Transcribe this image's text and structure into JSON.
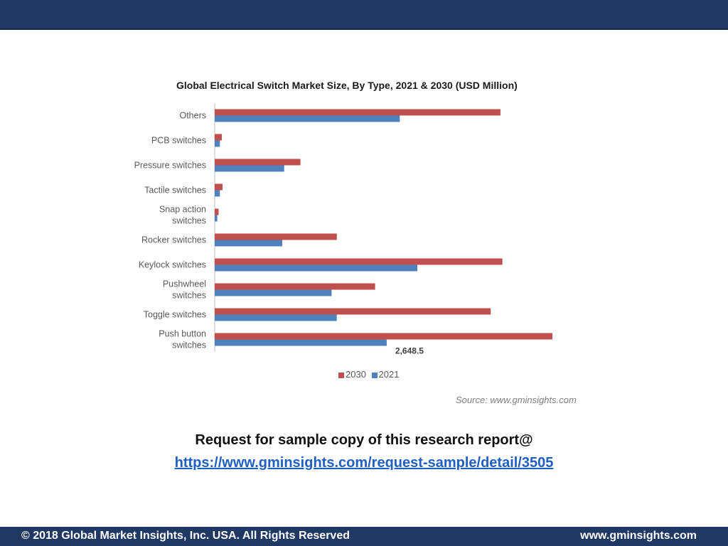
{
  "chart_data": {
    "type": "bar",
    "orientation": "horizontal",
    "title": "Global Electrical Switch Market Size, By Type, 2021 & 2030 (USD Million)",
    "categories": [
      "Others",
      "PCB switches",
      "Pressure switches",
      "Tactile switches",
      "Snap action switches",
      "Rocker switches",
      "Keylock switches",
      "Pushwheel switches",
      "Toggle switches",
      "Push button switches"
    ],
    "category_lines": [
      [
        "Others"
      ],
      [
        "PCB switches"
      ],
      [
        "Pressure switches"
      ],
      [
        "Tactile switches"
      ],
      [
        "Snap action",
        "switches"
      ],
      [
        "Rocker switches"
      ],
      [
        "Keylock switches"
      ],
      [
        "Pushwheel",
        "switches"
      ],
      [
        "Toggle switches"
      ],
      [
        "Push button",
        "switches"
      ]
    ],
    "series": [
      {
        "name": "2030",
        "color": "#c0504d",
        "values": [
          4400,
          110,
          1320,
          120,
          60,
          1880,
          4430,
          2470,
          4250,
          5200
        ]
      },
      {
        "name": "2021",
        "color": "#4f81bd",
        "values": [
          2850,
          80,
          1070,
          80,
          40,
          1040,
          3120,
          1800,
          1880,
          2648.5
        ]
      }
    ],
    "xlim": [
      0,
      5500
    ],
    "annotations": [
      {
        "category": "Push button switches",
        "series": "2021",
        "text": "2,648.5"
      }
    ],
    "legend": "bottom",
    "grid": false,
    "source": "Source: www.gminsights.com"
  },
  "cta": {
    "text": "Request for sample copy of this research report@",
    "link": "https://www.gminsights.com/request-sample/detail/3505"
  },
  "footer": {
    "copyright": "© 2018 Global Market Insights, Inc. USA. All Rights Reserved",
    "site": "www.gminsights.com"
  }
}
